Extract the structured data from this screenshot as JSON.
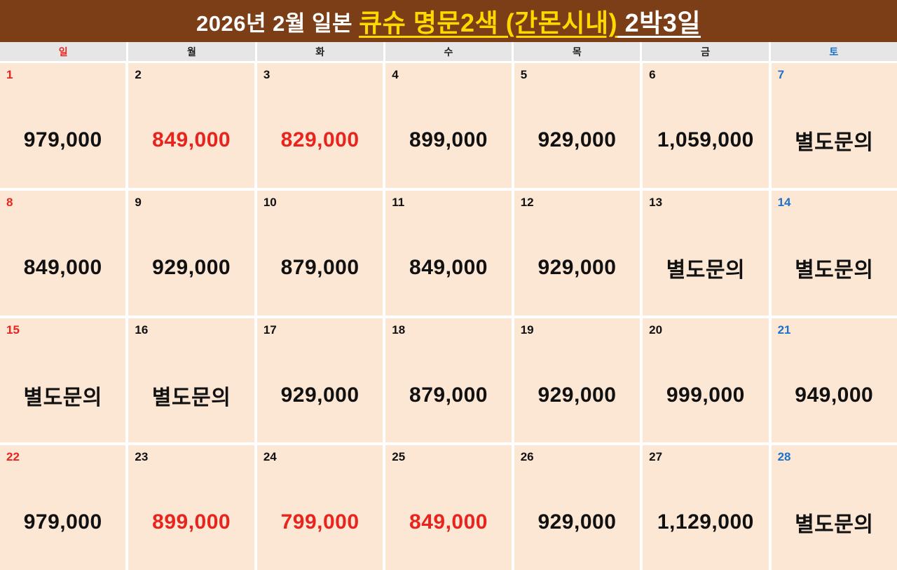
{
  "title": {
    "part1": "2026년 2월 일본",
    "part2": "큐슈 명문2색 (간몬시내)",
    "part3": " 2박3일"
  },
  "weekdays": [
    {
      "label": "일",
      "type": "sun"
    },
    {
      "label": "월",
      "type": "weekday"
    },
    {
      "label": "화",
      "type": "weekday"
    },
    {
      "label": "수",
      "type": "weekday"
    },
    {
      "label": "목",
      "type": "weekday"
    },
    {
      "label": "금",
      "type": "weekday"
    },
    {
      "label": "토",
      "type": "sat"
    }
  ],
  "calendar": {
    "weeks": [
      [
        {
          "day": "1",
          "day_type": "sun",
          "text": "979,000",
          "text_color": "black"
        },
        {
          "day": "2",
          "day_type": "weekday",
          "text": "849,000",
          "text_color": "red"
        },
        {
          "day": "3",
          "day_type": "weekday",
          "text": "829,000",
          "text_color": "red"
        },
        {
          "day": "4",
          "day_type": "weekday",
          "text": "899,000",
          "text_color": "black"
        },
        {
          "day": "5",
          "day_type": "weekday",
          "text": "929,000",
          "text_color": "black"
        },
        {
          "day": "6",
          "day_type": "weekday",
          "text": "1,059,000",
          "text_color": "black"
        },
        {
          "day": "7",
          "day_type": "sat",
          "text": "별도문의",
          "text_color": "black"
        }
      ],
      [
        {
          "day": "8",
          "day_type": "sun",
          "text": "849,000",
          "text_color": "black"
        },
        {
          "day": "9",
          "day_type": "weekday",
          "text": "929,000",
          "text_color": "black"
        },
        {
          "day": "10",
          "day_type": "weekday",
          "text": "879,000",
          "text_color": "black"
        },
        {
          "day": "11",
          "day_type": "weekday",
          "text": "849,000",
          "text_color": "black"
        },
        {
          "day": "12",
          "day_type": "weekday",
          "text": "929,000",
          "text_color": "black"
        },
        {
          "day": "13",
          "day_type": "weekday",
          "text": "별도문의",
          "text_color": "black"
        },
        {
          "day": "14",
          "day_type": "sat",
          "text": "별도문의",
          "text_color": "black"
        }
      ],
      [
        {
          "day": "15",
          "day_type": "sun",
          "text": "별도문의",
          "text_color": "black"
        },
        {
          "day": "16",
          "day_type": "weekday",
          "text": "별도문의",
          "text_color": "black"
        },
        {
          "day": "17",
          "day_type": "weekday",
          "text": "929,000",
          "text_color": "black"
        },
        {
          "day": "18",
          "day_type": "weekday",
          "text": "879,000",
          "text_color": "black"
        },
        {
          "day": "19",
          "day_type": "weekday",
          "text": "929,000",
          "text_color": "black"
        },
        {
          "day": "20",
          "day_type": "weekday",
          "text": "999,000",
          "text_color": "black"
        },
        {
          "day": "21",
          "day_type": "sat",
          "text": "949,000",
          "text_color": "black"
        }
      ],
      [
        {
          "day": "22",
          "day_type": "sun",
          "text": "979,000",
          "text_color": "black"
        },
        {
          "day": "23",
          "day_type": "weekday",
          "text": "899,000",
          "text_color": "red"
        },
        {
          "day": "24",
          "day_type": "weekday",
          "text": "799,000",
          "text_color": "red"
        },
        {
          "day": "25",
          "day_type": "weekday",
          "text": "849,000",
          "text_color": "red"
        },
        {
          "day": "26",
          "day_type": "weekday",
          "text": "929,000",
          "text_color": "black"
        },
        {
          "day": "27",
          "day_type": "weekday",
          "text": "1,129,000",
          "text_color": "black"
        },
        {
          "day": "28",
          "day_type": "sat",
          "text": "별도문의",
          "text_color": "black"
        }
      ]
    ]
  },
  "colors": {
    "title_bg": "#7b3e16",
    "title_text": "#ffffff",
    "title_highlight": "#ffd800",
    "header_bg": "#e6e6e6",
    "cell_bg": "#fce6d4",
    "sunday_red": "#e8241f",
    "saturday_blue": "#1c72c8",
    "price_black": "#111111",
    "price_red": "#e8241f"
  }
}
